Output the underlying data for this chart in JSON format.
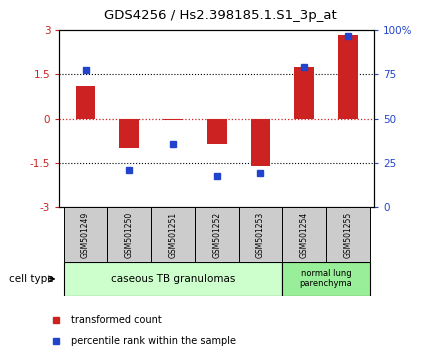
{
  "title": "GDS4256 / Hs2.398185.1.S1_3p_at",
  "samples": [
    "GSM501249",
    "GSM501250",
    "GSM501251",
    "GSM501252",
    "GSM501253",
    "GSM501254",
    "GSM501255"
  ],
  "bar_values": [
    1.1,
    -1.0,
    -0.05,
    -0.85,
    -1.6,
    1.75,
    2.85
  ],
  "dot_values_left": [
    1.65,
    -1.75,
    -0.85,
    -1.95,
    -1.85,
    1.75,
    2.8
  ],
  "bar_color": "#cc2222",
  "dot_color": "#2244cc",
  "ylim_left": [
    -3,
    3
  ],
  "ylim_right": [
    0,
    100
  ],
  "yticks_left": [
    -3,
    -1.5,
    0,
    1.5,
    3
  ],
  "ytick_labels_left": [
    "-3",
    "-1.5",
    "0",
    "1.5",
    "3"
  ],
  "ytick_labels_right": [
    "0",
    "25",
    "50",
    "75",
    "100%"
  ],
  "group1_label": "caseous TB granulomas",
  "group2_label": "normal lung\nparenchyma",
  "group1_color": "#ccffcc",
  "group2_color": "#99ee99",
  "cell_type_label": "cell type",
  "legend1_label": "transformed count",
  "legend2_label": "percentile rank within the sample",
  "bg_color": "#ffffff",
  "xlabel_bg": "#cccccc",
  "bar_width": 0.45
}
